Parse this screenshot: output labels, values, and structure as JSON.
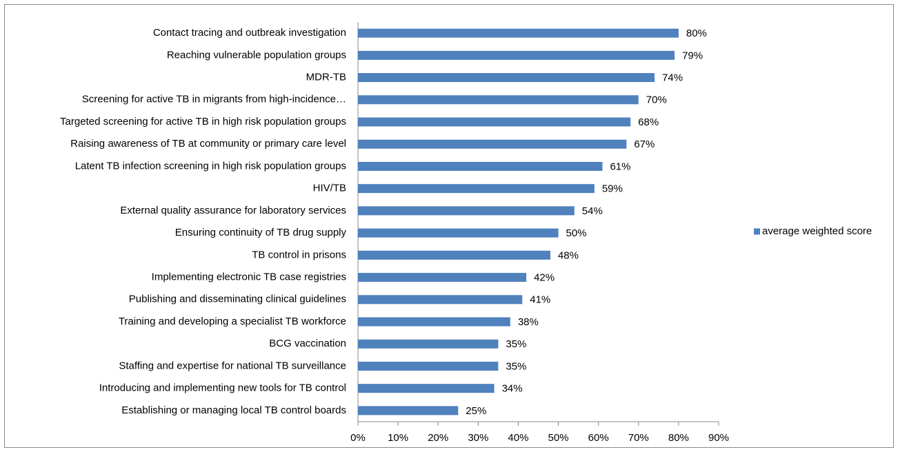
{
  "chart_data": {
    "type": "bar",
    "orientation": "horizontal",
    "categories": [
      "Contact tracing and outbreak investigation",
      "Reaching vulnerable population groups",
      "MDR-TB",
      "Screening for active TB in migrants from high-incidence…",
      "Targeted screening for active TB in high risk population groups",
      "Raising awareness of TB at community or primary care level",
      "Latent TB infection screening in high risk population groups",
      "HIV/TB",
      "External quality assurance for laboratory services",
      "Ensuring continuity of TB drug supply",
      "TB control in prisons",
      "Implementing electronic TB case registries",
      "Publishing and disseminating clinical guidelines",
      "Training and developing a specialist TB workforce",
      "BCG vaccination",
      "Staffing and expertise for national TB surveillance",
      "Introducing and implementing new tools for TB control",
      "Establishing or managing local TB control boards"
    ],
    "series": [
      {
        "name": "average weighted score",
        "color": "#4f81bd",
        "values": [
          80,
          79,
          74,
          70,
          68,
          67,
          61,
          59,
          54,
          50,
          48,
          42,
          41,
          38,
          35,
          35,
          34,
          25
        ],
        "value_labels": [
          "80%",
          "79%",
          "74%",
          "70%",
          "68%",
          "67%",
          "61%",
          "59%",
          "54%",
          "50%",
          "48%",
          "42%",
          "41%",
          "38%",
          "35%",
          "35%",
          "34%",
          "25%"
        ]
      }
    ],
    "xlim": [
      0,
      90
    ],
    "xticks": [
      {
        "value": 0,
        "label": "0%"
      },
      {
        "value": 10,
        "label": "10%"
      },
      {
        "value": 20,
        "label": "20%"
      },
      {
        "value": 30,
        "label": "30%"
      },
      {
        "value": 40,
        "label": "40%"
      },
      {
        "value": 50,
        "label": "50%"
      },
      {
        "value": 60,
        "label": "60%"
      },
      {
        "value": 70,
        "label": "70%"
      },
      {
        "value": 80,
        "label": "80%"
      },
      {
        "value": 90,
        "label": "90%"
      }
    ],
    "grid": false,
    "legend": "right"
  }
}
